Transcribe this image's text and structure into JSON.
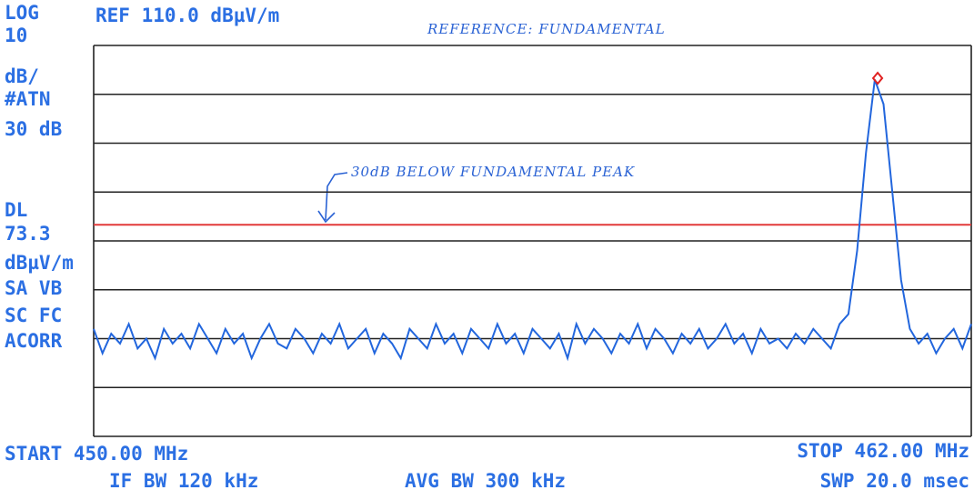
{
  "chart_data": {
    "type": "line",
    "ref_label": "REF 110.0 dBµV/m",
    "left_labels": [
      "LOG",
      "10",
      "dB/",
      "#ATN",
      "30 dB",
      "DL"
    ],
    "unit_labels": [
      "dBµV/m",
      "SA VB",
      "SC FC",
      "ACORR"
    ],
    "start_label": "START 450.00 MHz",
    "stop_label": "STOP 462.00 MHz",
    "if_bw_label": "IF BW 120 kHz",
    "avg_bw_label": "AVG BW 300 kHz",
    "sweep_label": "SWP 20.0 msec",
    "annotations": [
      "REFERENCE: FUNDAMENTAL",
      "30dB BELOW FUNDAMENTAL PEAK"
    ],
    "xlim": [
      450,
      462
    ],
    "ylim": [
      30,
      110
    ],
    "grid_lines": [
      30,
      40,
      50,
      60,
      70,
      80,
      90,
      100,
      110
    ],
    "display_line": {
      "value": 73.3,
      "color": "#e23a3a"
    },
    "marker": {
      "x": 460.72,
      "y": 103.3,
      "color": "#e02020"
    },
    "series": [
      {
        "color": "#2266dd",
        "x": [
          450,
          450.12,
          450.24,
          450.36,
          450.48,
          450.6,
          450.72,
          450.84,
          450.96,
          451.08,
          451.2,
          451.32,
          451.44,
          451.56,
          451.68,
          451.8,
          451.92,
          452.04,
          452.16,
          452.28,
          452.4,
          452.52,
          452.64,
          452.76,
          452.88,
          453,
          453.12,
          453.24,
          453.36,
          453.48,
          453.6,
          453.72,
          453.84,
          453.96,
          454.08,
          454.2,
          454.32,
          454.44,
          454.56,
          454.68,
          454.8,
          454.92,
          455.04,
          455.16,
          455.28,
          455.4,
          455.52,
          455.64,
          455.76,
          455.88,
          456,
          456.12,
          456.24,
          456.36,
          456.48,
          456.6,
          456.72,
          456.84,
          456.96,
          457.08,
          457.2,
          457.32,
          457.44,
          457.56,
          457.68,
          457.8,
          457.92,
          458.04,
          458.16,
          458.28,
          458.4,
          458.52,
          458.64,
          458.76,
          458.88,
          459,
          459.12,
          459.24,
          459.36,
          459.48,
          459.6,
          459.72,
          459.84,
          459.96,
          460.08,
          460.2,
          460.32,
          460.44,
          460.56,
          460.68,
          460.8,
          460.92,
          461.04,
          461.16,
          461.28,
          461.4,
          461.52,
          461.64,
          461.76,
          461.88,
          462
        ],
        "values": [
          52,
          47,
          51,
          49,
          53,
          48,
          50,
          46,
          52,
          49,
          51,
          48,
          53,
          50,
          47,
          52,
          49,
          51,
          46,
          50,
          53,
          49,
          48,
          52,
          50,
          47,
          51,
          49,
          53,
          48,
          50,
          52,
          47,
          51,
          49,
          46,
          52,
          50,
          48,
          53,
          49,
          51,
          47,
          52,
          50,
          48,
          53,
          49,
          51,
          47,
          52,
          50,
          48,
          51,
          46,
          53,
          49,
          52,
          50,
          47,
          51,
          49,
          53,
          48,
          52,
          50,
          47,
          51,
          49,
          52,
          48,
          50,
          53,
          49,
          51,
          47,
          52,
          49,
          50,
          48,
          51,
          49,
          52,
          50,
          48,
          53,
          55,
          68,
          88,
          103,
          98,
          80,
          62,
          52,
          49,
          51,
          47,
          50,
          52,
          48,
          53
        ]
      }
    ]
  }
}
